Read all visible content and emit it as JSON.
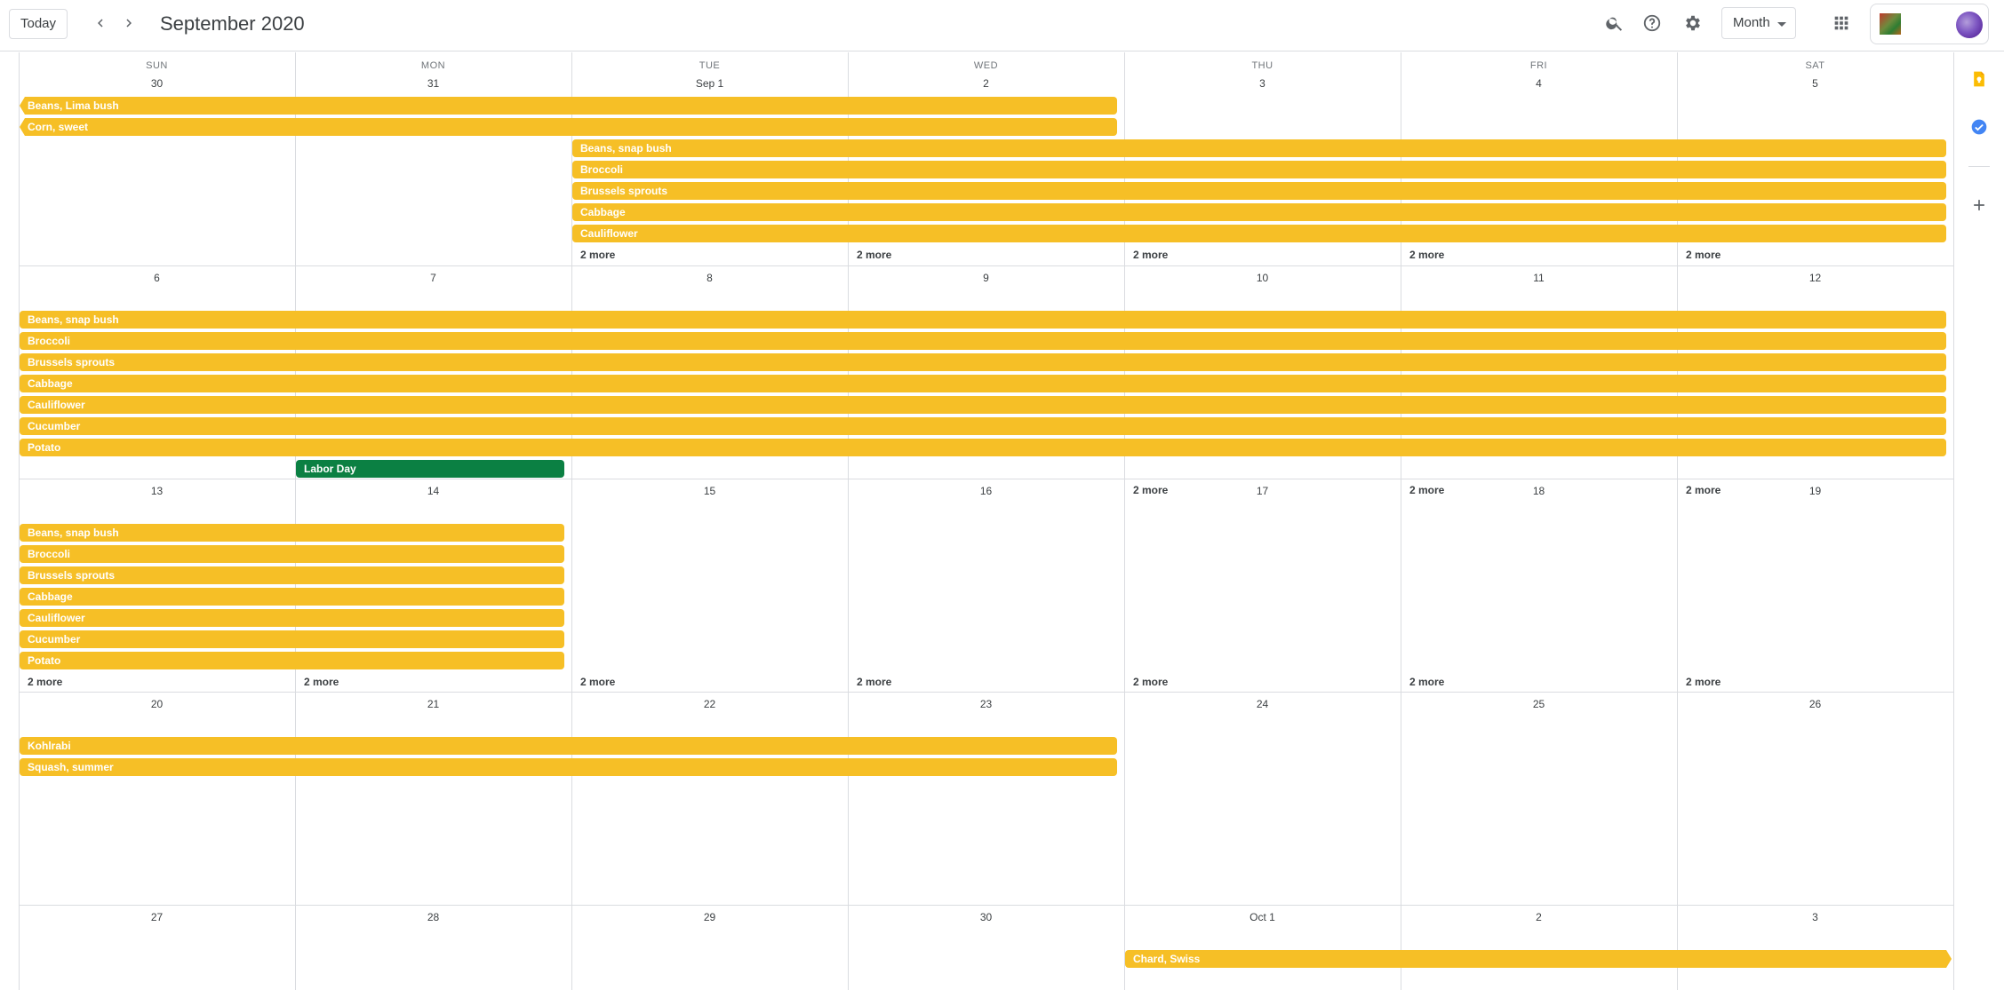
{
  "header": {
    "today_label": "Today",
    "prev_icon": "chevron-left-icon",
    "next_icon": "chevron-right-icon",
    "title": "September 2020",
    "search_icon": "search-icon",
    "help_icon": "help-icon",
    "settings_icon": "gear-icon",
    "view_label": "Month",
    "apps_icon": "apps-grid-icon"
  },
  "colors": {
    "event_yellow": "#f6bf26",
    "event_green": "#0b8043",
    "grid_line": "#dadce0",
    "text": "#3c4043"
  },
  "weekdays": [
    "SUN",
    "MON",
    "TUE",
    "WED",
    "THU",
    "FRI",
    "SAT"
  ],
  "weeks": [
    {
      "days": [
        "30",
        "31",
        "Sep 1",
        "2",
        "3",
        "4",
        "5"
      ],
      "events": [
        {
          "title": "Beans, Lima bush",
          "start": 0,
          "end": 3,
          "color": "yellow",
          "continues_left": true
        },
        {
          "title": "Corn, sweet",
          "start": 0,
          "end": 3,
          "color": "yellow",
          "continues_left": true
        },
        {
          "title": "Beans, snap bush",
          "start": 2,
          "end": 6,
          "color": "yellow"
        },
        {
          "title": "Broccoli",
          "start": 2,
          "end": 6,
          "color": "yellow"
        },
        {
          "title": "Brussels sprouts",
          "start": 2,
          "end": 6,
          "color": "yellow"
        },
        {
          "title": "Cabbage",
          "start": 2,
          "end": 6,
          "color": "yellow"
        },
        {
          "title": "Cauliflower",
          "start": 2,
          "end": 6,
          "color": "yellow"
        }
      ],
      "more": [
        {
          "day": 2,
          "label": "2 more"
        },
        {
          "day": 3,
          "label": "2 more"
        },
        {
          "day": 4,
          "label": "2 more"
        },
        {
          "day": 5,
          "label": "2 more"
        },
        {
          "day": 6,
          "label": "2 more"
        }
      ]
    },
    {
      "days": [
        "6",
        "7",
        "8",
        "9",
        "10",
        "11",
        "12"
      ],
      "events": [
        {
          "title": "Beans, snap bush",
          "start": 0,
          "end": 6,
          "color": "yellow"
        },
        {
          "title": "Broccoli",
          "start": 0,
          "end": 6,
          "color": "yellow"
        },
        {
          "title": "Brussels sprouts",
          "start": 0,
          "end": 6,
          "color": "yellow"
        },
        {
          "title": "Cabbage",
          "start": 0,
          "end": 6,
          "color": "yellow"
        },
        {
          "title": "Cauliflower",
          "start": 0,
          "end": 6,
          "color": "yellow"
        },
        {
          "title": "Cucumber",
          "start": 0,
          "end": 6,
          "color": "yellow"
        },
        {
          "title": "Potato",
          "start": 0,
          "end": 6,
          "color": "yellow"
        },
        {
          "title": "Labor Day",
          "start": 1,
          "end": 1,
          "color": "green"
        }
      ],
      "more": [
        {
          "day": 4,
          "label": "2 more"
        },
        {
          "day": 5,
          "label": "2 more"
        },
        {
          "day": 6,
          "label": "2 more"
        }
      ]
    },
    {
      "days": [
        "13",
        "14",
        "15",
        "16",
        "17",
        "18",
        "19"
      ],
      "events": [
        {
          "title": "Beans, snap bush",
          "start": 0,
          "end": 1,
          "color": "yellow"
        },
        {
          "title": "Broccoli",
          "start": 0,
          "end": 1,
          "color": "yellow"
        },
        {
          "title": "Brussels sprouts",
          "start": 0,
          "end": 1,
          "color": "yellow"
        },
        {
          "title": "Cabbage",
          "start": 0,
          "end": 1,
          "color": "yellow"
        },
        {
          "title": "Cauliflower",
          "start": 0,
          "end": 1,
          "color": "yellow"
        },
        {
          "title": "Cucumber",
          "start": 0,
          "end": 1,
          "color": "yellow"
        },
        {
          "title": "Potato",
          "start": 0,
          "end": 1,
          "color": "yellow"
        }
      ],
      "more": [
        {
          "day": 0,
          "label": "2 more"
        },
        {
          "day": 1,
          "label": "2 more"
        },
        {
          "day": 2,
          "label": "2 more"
        },
        {
          "day": 3,
          "label": "2 more"
        },
        {
          "day": 4,
          "label": "2 more"
        },
        {
          "day": 5,
          "label": "2 more"
        },
        {
          "day": 6,
          "label": "2 more"
        }
      ]
    },
    {
      "days": [
        "20",
        "21",
        "22",
        "23",
        "24",
        "25",
        "26"
      ],
      "events": [
        {
          "title": "Kohlrabi",
          "start": 0,
          "end": 3,
          "color": "yellow"
        },
        {
          "title": "Squash, summer",
          "start": 0,
          "end": 3,
          "color": "yellow"
        }
      ],
      "more": []
    },
    {
      "days": [
        "27",
        "28",
        "29",
        "30",
        "Oct 1",
        "2",
        "3"
      ],
      "events": [
        {
          "title": "Chard, Swiss",
          "start": 4,
          "end": 6,
          "color": "yellow",
          "continues_right": true
        }
      ],
      "more": []
    }
  ],
  "side_panel": {
    "icons": [
      "keep-icon",
      "tasks-icon",
      "add-icon"
    ]
  }
}
